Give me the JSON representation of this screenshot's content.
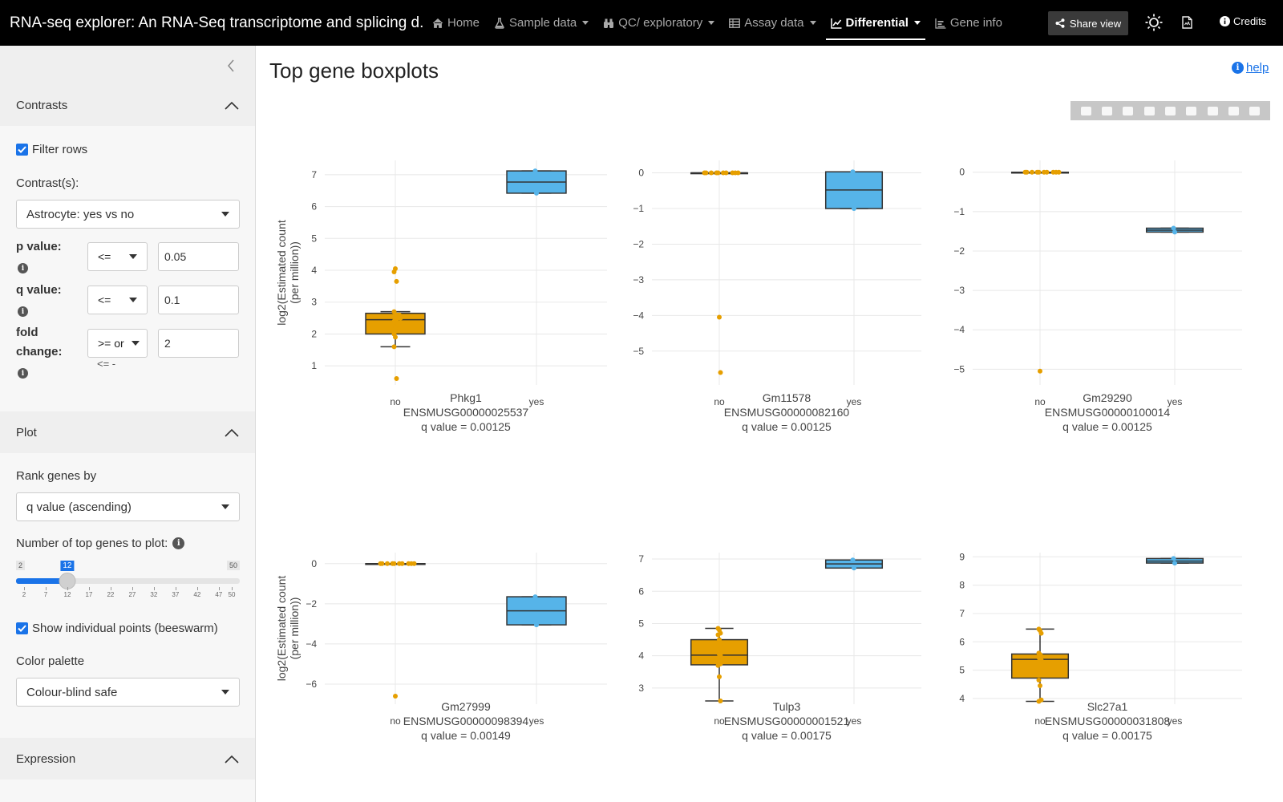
{
  "navbar": {
    "title": "RNA-seq explorer: An RNA-Seq transcriptome and splicing d...",
    "items": [
      {
        "label": "Home",
        "icon": "home-icon",
        "caret": false,
        "active": false
      },
      {
        "label": "Sample data",
        "icon": "flask-icon",
        "caret": true,
        "active": false
      },
      {
        "label": "QC/ exploratory",
        "icon": "binoculars-icon",
        "caret": true,
        "active": false
      },
      {
        "label": "Assay data",
        "icon": "table-icon",
        "caret": true,
        "active": false
      },
      {
        "label": "Differential",
        "icon": "line-chart-icon",
        "caret": true,
        "active": true
      },
      {
        "label": "Gene info",
        "icon": "area-chart-icon",
        "caret": false,
        "active": false
      }
    ],
    "share_label": "Share view",
    "credits_label": "Credits"
  },
  "sidebar": {
    "contrasts": {
      "header": "Contrasts",
      "filter_rows_label": "Filter rows",
      "filter_rows_checked": true,
      "contrast_label": "Contrast(s):",
      "contrast_value": "Astrocyte: yes vs no",
      "pvalue_label": "p value:",
      "pvalue_op": "<=",
      "pvalue_value": "0.05",
      "qvalue_label": "q value:",
      "qvalue_op": "<=",
      "qvalue_value": "0.1",
      "fold_label_1": "fold",
      "fold_label_2": "change:",
      "fold_op": ">= or",
      "fold_op_second_line": "<= -",
      "fold_value": "2"
    },
    "plot": {
      "header": "Plot",
      "rank_label": "Rank genes by",
      "rank_value": "q value (ascending)",
      "ntop_label": "Number of top genes to plot:",
      "slider": {
        "min": "2",
        "max": "50",
        "value": "12",
        "value_fraction": 0.2083,
        "ticks": [
          "2",
          "7",
          "12",
          "17",
          "22",
          "27",
          "32",
          "37",
          "42",
          "47",
          "50"
        ]
      },
      "beeswarm_label": "Show individual points (beeswarm)",
      "beeswarm_checked": true,
      "palette_label": "Color palette",
      "palette_value": "Colour-blind safe"
    },
    "expression": {
      "header": "Expression"
    }
  },
  "main": {
    "title": "Top gene boxplots",
    "help_label": "help",
    "y_axis_label_line1": "log2(Estimated count",
    "y_axis_label_line2": "(per million))"
  },
  "colors": {
    "no": "#E69F00",
    "yes": "#56B4E9",
    "accent": "#1a73e8"
  },
  "chart_data": [
    {
      "type": "box",
      "gene": "Phkg1",
      "ensembl": "ENSMUSG00000025537",
      "qvalue_text": "q value = 0.00125",
      "categories": [
        "no",
        "yes"
      ],
      "yticks": [
        1,
        2,
        3,
        4,
        5,
        6,
        7
      ],
      "ylim": [
        0.4,
        7.45
      ],
      "boxes": [
        {
          "group": "no",
          "min": 1.6,
          "q1": 2.0,
          "median": 2.45,
          "q3": 2.65,
          "max": 2.7,
          "points": [
            2.0,
            2.1,
            2.3,
            2.4,
            2.5,
            2.6,
            2.7,
            2.6,
            2.5,
            2.3,
            2.2,
            2.45,
            1.6,
            1.9,
            0.6,
            3.95,
            4.05,
            3.65
          ]
        },
        {
          "group": "yes",
          "min": 6.42,
          "q1": 6.42,
          "median": 6.77,
          "q3": 7.12,
          "max": 7.12,
          "points": [
            7.12,
            6.42
          ]
        }
      ]
    },
    {
      "type": "box",
      "gene": "Gm11578",
      "ensembl": "ENSMUSG00000082160",
      "qvalue_text": "q value = 0.00125",
      "categories": [
        "no",
        "yes"
      ],
      "yticks": [
        0,
        -1,
        -2,
        -3,
        -4,
        -5
      ],
      "ylim": [
        -5.95,
        0.35
      ],
      "boxes": [
        {
          "group": "no",
          "min": 0,
          "q1": 0,
          "median": 0,
          "q3": 0,
          "max": 0,
          "points": [
            0,
            0,
            0,
            0,
            0,
            0,
            0,
            0,
            0,
            0,
            -4.05,
            -5.6
          ]
        },
        {
          "group": "yes",
          "min": -1.0,
          "q1": -1.0,
          "median": -0.48,
          "q3": 0.03,
          "max": 0.03,
          "points": [
            0.03,
            -1.0
          ]
        }
      ]
    },
    {
      "type": "box",
      "gene": "Gm29290",
      "ensembl": "ENSMUSG00000100014",
      "qvalue_text": "q value = 0.00125",
      "categories": [
        "no",
        "yes"
      ],
      "yticks": [
        0,
        -1,
        -2,
        -3,
        -4,
        -5
      ],
      "ylim": [
        -5.4,
        0.3
      ],
      "boxes": [
        {
          "group": "no",
          "min": 0,
          "q1": 0,
          "median": 0,
          "q3": 0,
          "max": 0,
          "points": [
            0,
            0,
            0,
            0,
            0,
            0,
            0,
            0,
            0,
            0,
            -5.05
          ]
        },
        {
          "group": "yes",
          "min": -1.52,
          "q1": -1.52,
          "median": -1.47,
          "q3": -1.42,
          "max": -1.42,
          "points": [
            -1.42,
            -1.52
          ]
        }
      ]
    },
    {
      "type": "box",
      "gene": "Gm27999",
      "ensembl": "ENSMUSG00000098394",
      "qvalue_text": "q value = 0.00149",
      "categories": [
        "no",
        "yes"
      ],
      "yticks": [
        0,
        -2,
        -4,
        -6
      ],
      "ylim": [
        -7.0,
        0.55
      ],
      "boxes": [
        {
          "group": "no",
          "min": 0,
          "q1": 0,
          "median": 0,
          "q3": 0,
          "max": 0,
          "points": [
            0,
            0,
            0,
            0,
            0,
            0,
            0,
            0,
            0,
            0,
            -6.6
          ]
        },
        {
          "group": "yes",
          "min": -3.05,
          "q1": -3.05,
          "median": -2.35,
          "q3": -1.65,
          "max": -1.65,
          "points": [
            -1.65,
            -3.05
          ]
        }
      ]
    },
    {
      "type": "box",
      "gene": "Tulp3",
      "ensembl": "ENSMUSG00000001521",
      "qvalue_text": "q value = 0.00175",
      "categories": [
        "no",
        "yes"
      ],
      "yticks": [
        3,
        4,
        5,
        6,
        7
      ],
      "ylim": [
        2.5,
        7.2
      ],
      "boxes": [
        {
          "group": "no",
          "min": 2.6,
          "q1": 3.72,
          "median": 4.02,
          "q3": 4.5,
          "max": 4.85,
          "points": [
            4.85,
            4.8,
            4.7,
            4.65,
            4.5,
            4.3,
            4.1,
            4.05,
            4.0,
            3.9,
            3.8,
            3.75,
            3.7,
            3.35,
            2.6
          ]
        },
        {
          "group": "yes",
          "min": 6.72,
          "q1": 6.72,
          "median": 6.85,
          "q3": 6.97,
          "max": 6.97,
          "points": [
            6.97,
            6.72
          ]
        }
      ]
    },
    {
      "type": "box",
      "gene": "Slc27a1",
      "ensembl": "ENSMUSG00000031808",
      "qvalue_text": "q value = 0.00175",
      "categories": [
        "no",
        "yes"
      ],
      "yticks": [
        4,
        5,
        6,
        7,
        8,
        9
      ],
      "ylim": [
        3.8,
        9.15
      ],
      "boxes": [
        {
          "group": "no",
          "min": 3.9,
          "q1": 4.72,
          "median": 5.38,
          "q3": 5.57,
          "max": 6.45,
          "points": [
            6.45,
            6.4,
            6.3,
            5.6,
            5.55,
            5.5,
            5.45,
            5.4,
            5.35,
            5.3,
            5.2,
            5.0,
            4.65,
            4.45,
            3.95,
            3.9
          ]
        },
        {
          "group": "yes",
          "min": 8.78,
          "q1": 8.78,
          "median": 8.85,
          "q3": 8.94,
          "max": 8.94,
          "points": [
            8.94,
            8.78
          ]
        }
      ]
    }
  ]
}
